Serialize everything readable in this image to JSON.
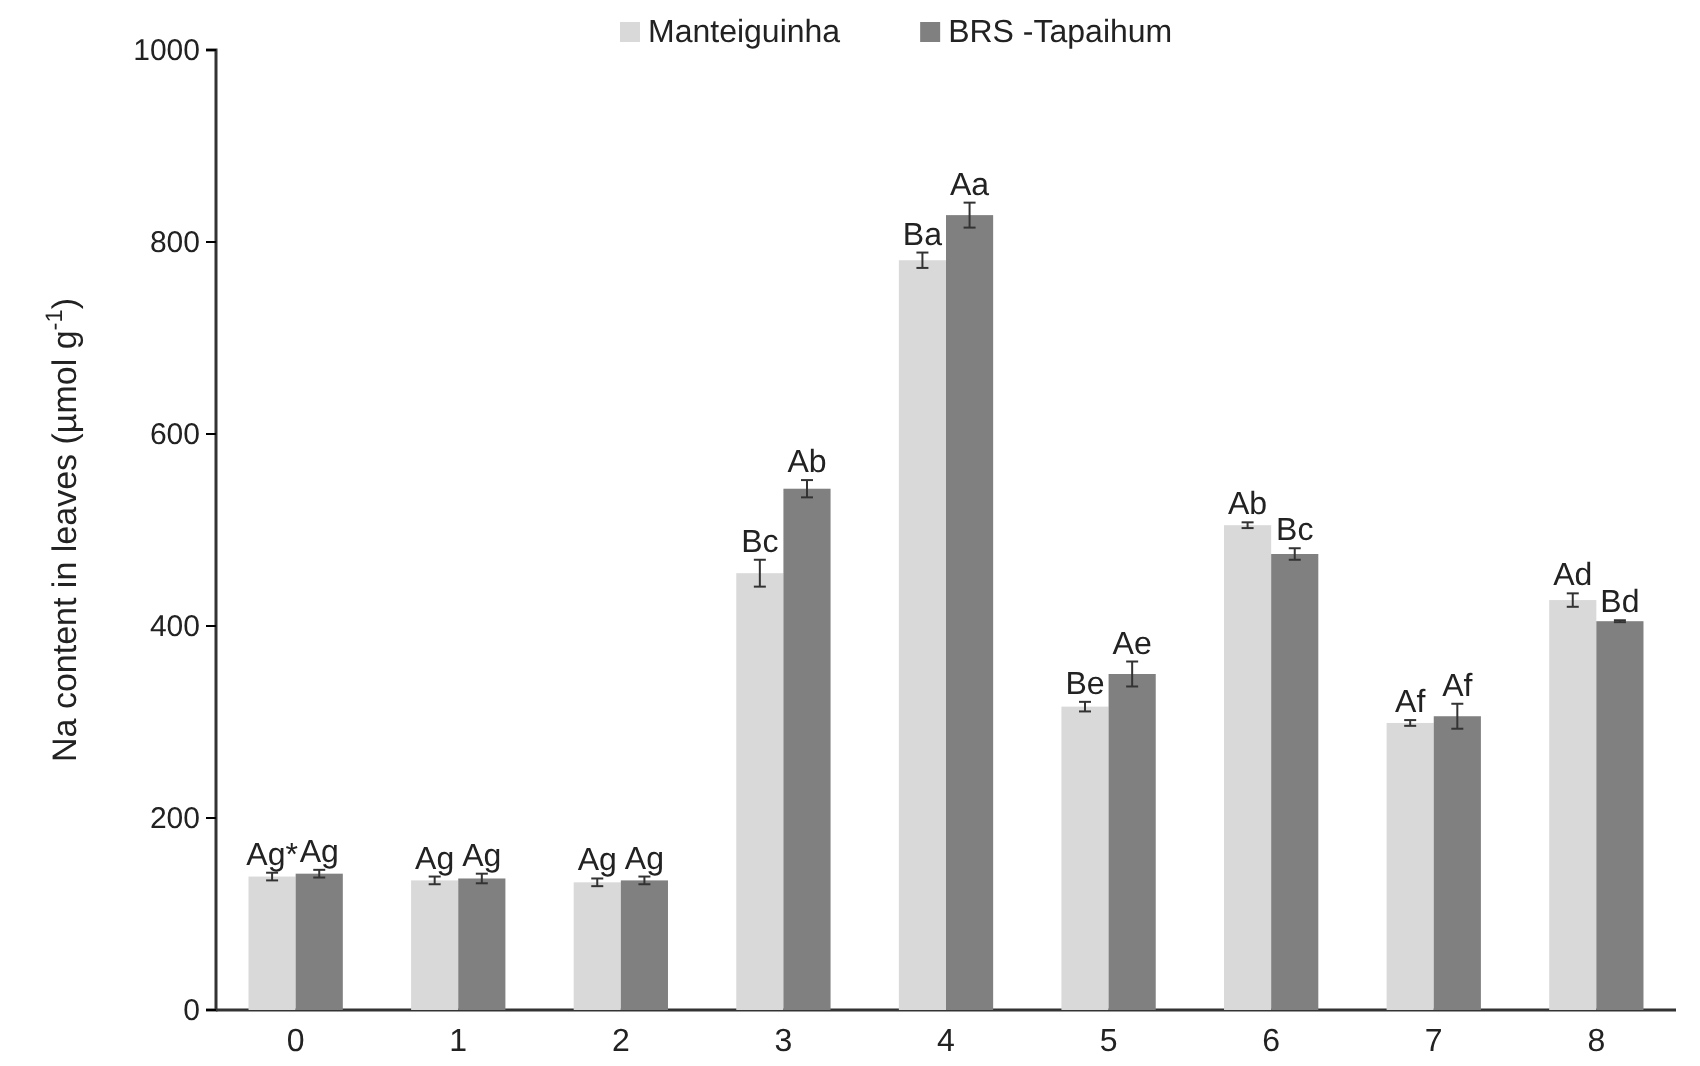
{
  "chart_data": {
    "type": "bar",
    "ylabel": "Na content in leaves (µmol g$^{-1}$)",
    "categories": [
      "0",
      "1",
      "2",
      "3",
      "4",
      "5",
      "6",
      "7",
      "8"
    ],
    "series": [
      {
        "name": "Manteiguinha",
        "color": "#d9d9d9",
        "values": [
          139,
          135,
          133,
          455,
          781,
          316,
          505,
          299,
          427
        ],
        "errors": [
          4,
          4,
          4,
          14,
          8,
          5,
          3,
          3,
          7
        ],
        "value_labels": [
          "Ag*",
          "Ag",
          "Ag",
          "Bc",
          "Ba",
          "Be",
          "Ab",
          "Af",
          "Ad"
        ]
      },
      {
        "name": "BRS -Tapaihum",
        "color": "#808080",
        "values": [
          142,
          137,
          135,
          543,
          828,
          350,
          475,
          306,
          405
        ],
        "errors": [
          4,
          5,
          4,
          9,
          13,
          13,
          6,
          13,
          1
        ],
        "value_labels": [
          "Ag",
          "Ag",
          "Ag",
          "Ab",
          "Aa",
          "Ae",
          "Bc",
          "Af",
          "Bd"
        ]
      }
    ],
    "ylim": [
      0,
      1000
    ],
    "yticks": [
      0,
      200,
      400,
      600,
      800,
      1000
    ],
    "legend": "top",
    "grid": false
  }
}
